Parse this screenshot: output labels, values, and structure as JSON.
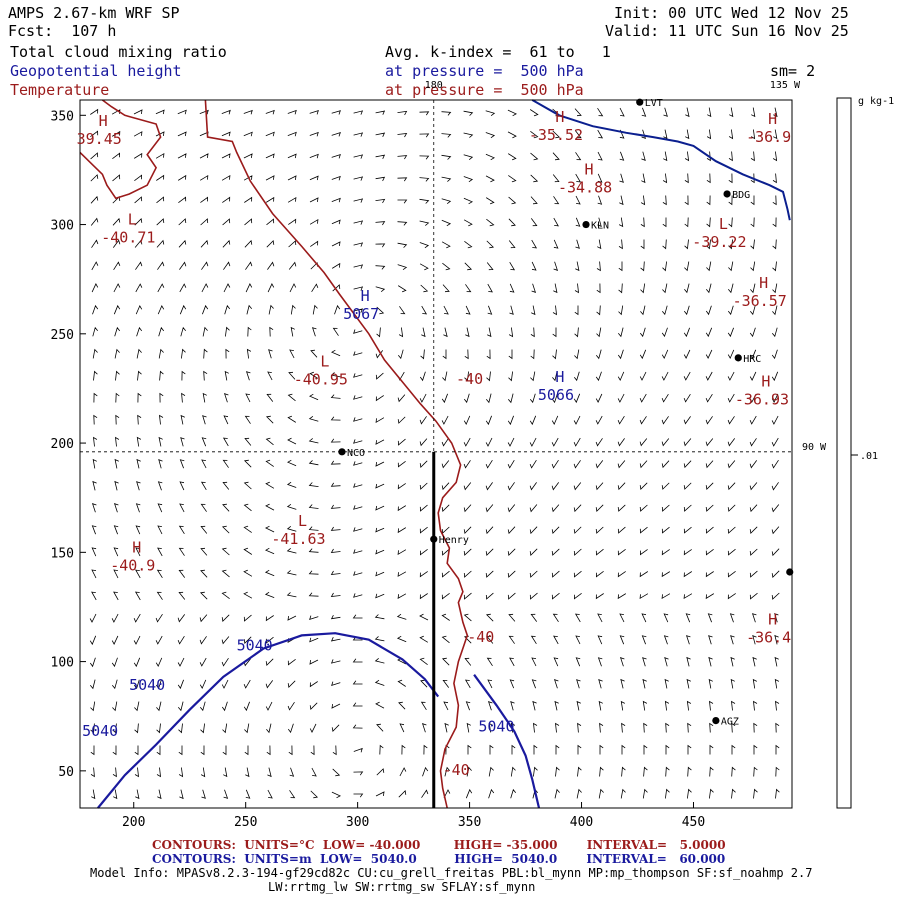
{
  "header": {
    "model": "AMPS 2.67-km WRF SP",
    "forecast": "Fcst:  107 h",
    "init": "Init: 00 UTC Wed 12 Nov 25",
    "valid": "Valid: 11 UTC Sun 16 Nov 25",
    "field1": "Total cloud mixing ratio",
    "field2": "Geopotential height",
    "field3": "Temperature",
    "avg": "Avg. k-index =  61 to   1",
    "pressure1": "at pressure =  500 hPa",
    "pressure2": "at pressure =  500 hPa",
    "sm": "sm= 2"
  },
  "colors": {
    "temperature": "#9b1b1b",
    "height": "#1a1a9e",
    "coast": "#0b1f8f",
    "wind": "#000000"
  },
  "chart_data": {
    "type": "map",
    "x_ticks": [
      200,
      250,
      300,
      350,
      400,
      450
    ],
    "y_ticks": [
      50,
      100,
      150,
      200,
      250,
      300,
      350
    ],
    "xlim": [
      176,
      494
    ],
    "ylim": [
      33,
      357
    ],
    "longitude_labels": [
      {
        "label": "180",
        "x": 334,
        "y": 357
      },
      {
        "label": "135 W",
        "x": 494,
        "y": 357
      },
      {
        "label": "90 W",
        "x": 494,
        "y": 196
      }
    ],
    "colorbar": {
      "unit": "g kg-1",
      "tick": ".01"
    },
    "stations": [
      {
        "name": "LVT",
        "x": 426,
        "y": 356
      },
      {
        "name": "BDG",
        "x": 465,
        "y": 314
      },
      {
        "name": "KLN",
        "x": 402,
        "y": 300
      },
      {
        "name": "HRC",
        "x": 470,
        "y": 239
      },
      {
        "name": "NCO",
        "x": 293,
        "y": 196
      },
      {
        "name": "Henry",
        "x": 334,
        "y": 156
      },
      {
        "name": "AGZ",
        "x": 460,
        "y": 73
      },
      {
        "name": "",
        "x": 493,
        "y": 141
      }
    ],
    "highs_lows": [
      {
        "type": "H",
        "value": "39.45",
        "x": 181,
        "y": 345,
        "field": "temperature"
      },
      {
        "type": "L",
        "value": "-40.71",
        "x": 194,
        "y": 300,
        "field": "temperature"
      },
      {
        "type": "H",
        "value": "5067",
        "x": 298,
        "y": 265,
        "field": "height"
      },
      {
        "type": "L",
        "value": "-40.95",
        "x": 280,
        "y": 235,
        "field": "temperature"
      },
      {
        "type": "H",
        "value": "5066",
        "x": 385,
        "y": 228,
        "field": "height"
      },
      {
        "type": "H",
        "value": "-35.52",
        "x": 385,
        "y": 347,
        "field": "temperature"
      },
      {
        "type": "H",
        "value": "-34.88",
        "x": 398,
        "y": 323,
        "field": "temperature"
      },
      {
        "type": "L",
        "value": "-39.22",
        "x": 458,
        "y": 298,
        "field": "temperature"
      },
      {
        "type": "H",
        "value": "-36.9",
        "x": 480,
        "y": 346,
        "field": "temperature"
      },
      {
        "type": "H",
        "value": "-36.57",
        "x": 476,
        "y": 271,
        "field": "temperature"
      },
      {
        "type": "H",
        "value": "-36.93",
        "x": 477,
        "y": 226,
        "field": "temperature"
      },
      {
        "type": "L",
        "value": "-41.63",
        "x": 270,
        "y": 162,
        "field": "temperature"
      },
      {
        "type": "H",
        "value": "-40.9",
        "x": 196,
        "y": 150,
        "field": "temperature"
      },
      {
        "type": "H",
        "value": "-36.4",
        "x": 480,
        "y": 117,
        "field": "temperature"
      }
    ],
    "contour_labels": [
      {
        "value": "-40",
        "x": 350,
        "y": 227,
        "field": "temperature"
      },
      {
        "value": "-40",
        "x": 355,
        "y": 109,
        "field": "temperature"
      },
      {
        "value": "-40",
        "x": 344,
        "y": 48,
        "field": "temperature"
      },
      {
        "value": "5040",
        "x": 254,
        "y": 105,
        "field": "height"
      },
      {
        "value": "5040",
        "x": 206,
        "y": 87,
        "field": "height"
      },
      {
        "value": "5040",
        "x": 185,
        "y": 66,
        "field": "height"
      },
      {
        "value": "5040",
        "x": 362,
        "y": 68,
        "field": "height"
      }
    ],
    "contour_lines": {
      "temperature_main": [
        [
          232,
          357
        ],
        [
          233,
          340
        ],
        [
          244,
          338
        ],
        [
          246,
          333
        ],
        [
          252,
          320
        ],
        [
          262,
          305
        ],
        [
          275,
          290
        ],
        [
          285,
          278
        ],
        [
          292,
          268
        ],
        [
          305,
          250
        ],
        [
          312,
          238
        ],
        [
          320,
          228
        ],
        [
          328,
          218
        ],
        [
          335,
          210
        ],
        [
          342,
          200
        ],
        [
          346,
          190
        ],
        [
          344,
          182
        ],
        [
          338,
          175
        ],
        [
          336,
          168
        ],
        [
          337,
          160
        ],
        [
          341,
          152
        ],
        [
          340,
          145
        ],
        [
          345,
          138
        ],
        [
          347,
          132
        ],
        [
          345,
          127
        ],
        [
          347,
          118
        ],
        [
          349,
          112
        ],
        [
          345,
          100
        ],
        [
          343,
          90
        ],
        [
          345,
          80
        ],
        [
          344,
          70
        ],
        [
          339,
          60
        ],
        [
          337,
          50
        ],
        [
          338,
          42
        ],
        [
          340,
          33
        ]
      ],
      "temperature_left": [
        [
          176,
          333
        ],
        [
          182,
          327
        ],
        [
          186,
          323
        ],
        [
          188,
          318
        ],
        [
          192,
          312
        ],
        [
          198,
          314
        ],
        [
          206,
          318
        ],
        [
          210,
          326
        ],
        [
          206,
          332
        ],
        [
          212,
          340
        ],
        [
          210,
          346
        ],
        [
          196,
          350
        ],
        [
          190,
          354
        ],
        [
          186,
          357
        ]
      ],
      "height_left": [
        [
          184,
          33
        ],
        [
          196,
          48
        ],
        [
          210,
          62
        ],
        [
          225,
          78
        ],
        [
          240,
          93
        ],
        [
          258,
          106
        ],
        [
          275,
          112
        ],
        [
          290,
          113
        ],
        [
          305,
          110
        ],
        [
          320,
          101
        ],
        [
          330,
          92
        ],
        [
          336,
          84
        ]
      ],
      "height_right": [
        [
          352,
          94
        ],
        [
          362,
          80
        ],
        [
          370,
          68
        ],
        [
          375,
          57
        ],
        [
          378,
          46
        ],
        [
          381,
          33
        ]
      ],
      "coast_top": [
        [
          378,
          357
        ],
        [
          390,
          350
        ],
        [
          405,
          345
        ],
        [
          420,
          342
        ],
        [
          432,
          340
        ],
        [
          443,
          338
        ],
        [
          450,
          336
        ],
        [
          460,
          329
        ],
        [
          472,
          323
        ],
        [
          484,
          318
        ],
        [
          490,
          315
        ],
        [
          492,
          307
        ],
        [
          493,
          302
        ]
      ]
    },
    "crosshair": {
      "x": 334,
      "y": 196
    },
    "cross_section": {
      "x": 334,
      "y0": 33,
      "y1": 196
    }
  },
  "footer": {
    "temp_contours": "CONTOURS:  UNITS=°C  LOW= -40.000        HIGH= -35.000       INTERVAL=   5.0000",
    "height_contours": "CONTOURS:  UNITS=m  LOW=  5040.0         HIGH=  5040.0       INTERVAL=   60.000",
    "model_info": "Model Info: MPASv8.2.3-194-gf29cd82c CU:cu_grell_freitas PBL:bl_mynn MP:mp_thompson SF:sf_noahmp 2.7",
    "model_info2": "LW:rrtmg_lw SW:rrtmg_sw SFLAY:sf_mynn"
  }
}
